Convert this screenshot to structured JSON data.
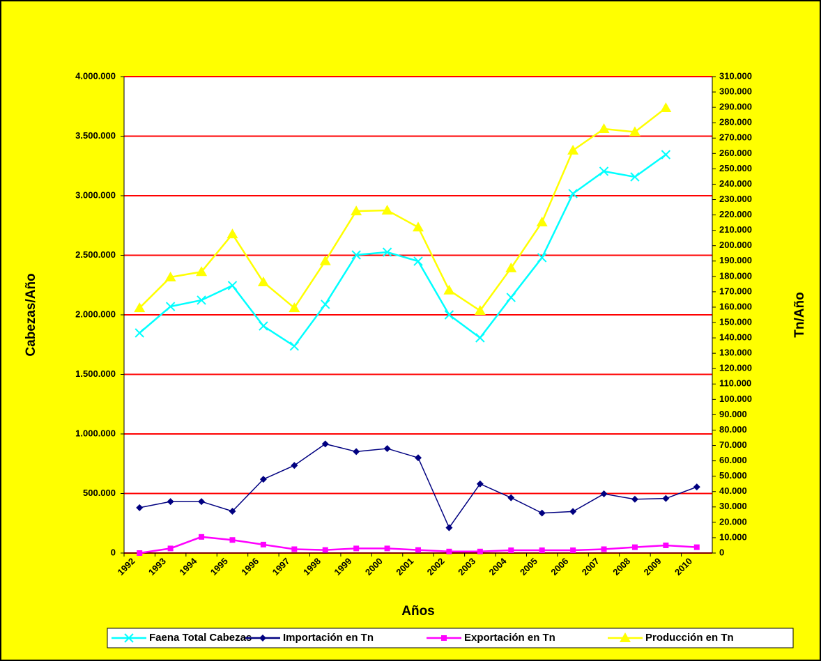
{
  "chart_data": {
    "type": "line",
    "x_label": "Años",
    "y_label": "Cabezas/Año",
    "y2_label": "Tn/Año",
    "categories": [
      "1992",
      "1993",
      "1994",
      "1995",
      "1996",
      "1997",
      "1998",
      "1999",
      "2000",
      "2001",
      "2002",
      "2003",
      "2004",
      "2005",
      "2006",
      "2007",
      "2008",
      "2009",
      "2010"
    ],
    "series": [
      {
        "name": "Faena Total Cabezas",
        "color": "#00ffff",
        "marker": "x",
        "values": [
          1848000,
          2070000,
          2123000,
          2246000,
          1906000,
          1737000,
          2088000,
          2503000,
          2526000,
          2450000,
          2000000,
          1807000,
          2146000,
          2480000,
          3018000,
          3205000,
          3158000,
          3345000,
          null
        ]
      },
      {
        "name": "Importación en Tn",
        "color": "#000080",
        "marker": "diamond",
        "axis": "y2",
        "values": [
          29500,
          33500,
          33500,
          27200,
          48000,
          57000,
          71000,
          66000,
          68000,
          62000,
          16500,
          45000,
          36000,
          26000,
          27000,
          38500,
          35000,
          35500,
          43000
        ]
      },
      {
        "name": "Exportación en Tn",
        "color": "#ff00ff",
        "marker": "square",
        "axis": "y2",
        "values": [
          0,
          3000,
          10500,
          8500,
          5500,
          2500,
          2000,
          3000,
          3000,
          2000,
          1000,
          1000,
          1800,
          1800,
          1800,
          2500,
          3800,
          5000,
          3800
        ]
      },
      {
        "name": "Producción en Tn",
        "color": "#ffff00",
        "marker": "triangle",
        "axis": "y2",
        "values": [
          159500,
          179500,
          183000,
          207500,
          176300,
          159500,
          190000,
          222500,
          223000,
          212000,
          171000,
          157700,
          185400,
          215300,
          262000,
          276000,
          274000,
          289600,
          null
        ]
      }
    ],
    "ylim": [
      0,
      4000000
    ],
    "yticks": [
      0,
      {
        "value": 500000,
        "label": "500.000"
      },
      {
        "value": 1000000,
        "label": "1.000.000"
      },
      {
        "value": 1500000,
        "label": "1.500.000"
      },
      {
        "value": 2000000,
        "label": "2.000.000"
      },
      {
        "value": 2500000,
        "label": "2.500.000"
      },
      {
        "value": 3000000,
        "label": "3.000.000"
      },
      {
        "value": 3500000,
        "label": "3.500.000"
      },
      {
        "value": 4000000,
        "label": "4.000.000"
      }
    ],
    "y2lim": [
      0,
      310000
    ],
    "y2ticks": [
      0,
      {
        "value": 10000,
        "label": "10.000"
      },
      {
        "value": 20000,
        "label": "20.000"
      },
      {
        "value": 30000,
        "label": "30.000"
      },
      {
        "value": 40000,
        "label": "40.000"
      },
      {
        "value": 50000,
        "label": "50.000"
      },
      {
        "value": 60000,
        "label": "60.000"
      },
      {
        "value": 70000,
        "label": "70.000"
      },
      {
        "value": 80000,
        "label": "80.000"
      },
      {
        "value": 90000,
        "label": "90.000"
      },
      {
        "value": 100000,
        "label": "100.000"
      },
      {
        "value": 110000,
        "label": "110.000"
      },
      {
        "value": 120000,
        "label": "120.000"
      },
      {
        "value": 130000,
        "label": "130.000"
      },
      {
        "value": 140000,
        "label": "140.000"
      },
      {
        "value": 150000,
        "label": "150.000"
      },
      {
        "value": 160000,
        "label": "160.000"
      },
      {
        "value": 170000,
        "label": "170.000"
      },
      {
        "value": 180000,
        "label": "180.000"
      },
      {
        "value": 190000,
        "label": "190.000"
      },
      {
        "value": 200000,
        "label": "200.000"
      },
      {
        "value": 210000,
        "label": "210.000"
      },
      {
        "value": 220000,
        "label": "220.000"
      },
      {
        "value": 230000,
        "label": "230.000"
      },
      {
        "value": 240000,
        "label": "240.000"
      },
      {
        "value": 250000,
        "label": "250.000"
      },
      {
        "value": 260000,
        "label": "260.000"
      },
      {
        "value": 270000,
        "label": "270.000"
      },
      {
        "value": 280000,
        "label": "280.000"
      },
      {
        "value": 290000,
        "label": "290.000"
      },
      {
        "value": 300000,
        "label": "300.000"
      },
      {
        "value": 310000,
        "label": "310.000"
      }
    ],
    "grid": true,
    "grid_color": "#ff0000",
    "legend": "bottom"
  }
}
